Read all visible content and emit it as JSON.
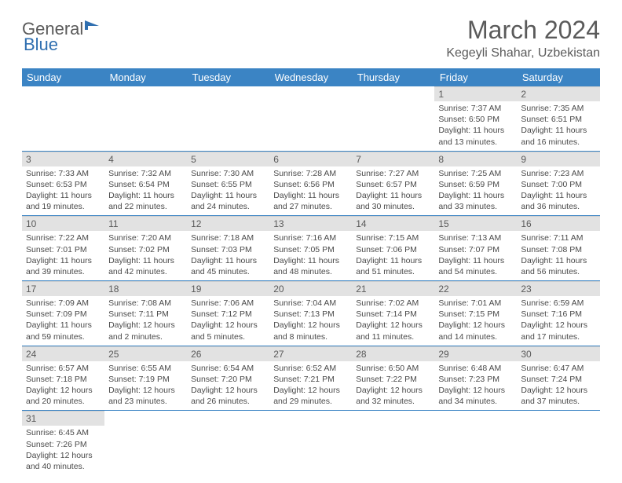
{
  "logo": {
    "text_a": "General",
    "text_b": "Blue"
  },
  "title": "March 2024",
  "location": "Kegeyli Shahar, Uzbekistan",
  "colors": {
    "header_bg": "#3b84c4",
    "header_text": "#ffffff",
    "daynum_bg": "#e2e2e2",
    "text_gray": "#5a5a5a",
    "cell_border": "#3b84c4"
  },
  "weekdays": [
    "Sunday",
    "Monday",
    "Tuesday",
    "Wednesday",
    "Thursday",
    "Friday",
    "Saturday"
  ],
  "weeks": [
    [
      null,
      null,
      null,
      null,
      null,
      {
        "n": "1",
        "sr": "Sunrise: 7:37 AM",
        "ss": "Sunset: 6:50 PM",
        "dl": "Daylight: 11 hours and 13 minutes."
      },
      {
        "n": "2",
        "sr": "Sunrise: 7:35 AM",
        "ss": "Sunset: 6:51 PM",
        "dl": "Daylight: 11 hours and 16 minutes."
      }
    ],
    [
      {
        "n": "3",
        "sr": "Sunrise: 7:33 AM",
        "ss": "Sunset: 6:53 PM",
        "dl": "Daylight: 11 hours and 19 minutes."
      },
      {
        "n": "4",
        "sr": "Sunrise: 7:32 AM",
        "ss": "Sunset: 6:54 PM",
        "dl": "Daylight: 11 hours and 22 minutes."
      },
      {
        "n": "5",
        "sr": "Sunrise: 7:30 AM",
        "ss": "Sunset: 6:55 PM",
        "dl": "Daylight: 11 hours and 24 minutes."
      },
      {
        "n": "6",
        "sr": "Sunrise: 7:28 AM",
        "ss": "Sunset: 6:56 PM",
        "dl": "Daylight: 11 hours and 27 minutes."
      },
      {
        "n": "7",
        "sr": "Sunrise: 7:27 AM",
        "ss": "Sunset: 6:57 PM",
        "dl": "Daylight: 11 hours and 30 minutes."
      },
      {
        "n": "8",
        "sr": "Sunrise: 7:25 AM",
        "ss": "Sunset: 6:59 PM",
        "dl": "Daylight: 11 hours and 33 minutes."
      },
      {
        "n": "9",
        "sr": "Sunrise: 7:23 AM",
        "ss": "Sunset: 7:00 PM",
        "dl": "Daylight: 11 hours and 36 minutes."
      }
    ],
    [
      {
        "n": "10",
        "sr": "Sunrise: 7:22 AM",
        "ss": "Sunset: 7:01 PM",
        "dl": "Daylight: 11 hours and 39 minutes."
      },
      {
        "n": "11",
        "sr": "Sunrise: 7:20 AM",
        "ss": "Sunset: 7:02 PM",
        "dl": "Daylight: 11 hours and 42 minutes."
      },
      {
        "n": "12",
        "sr": "Sunrise: 7:18 AM",
        "ss": "Sunset: 7:03 PM",
        "dl": "Daylight: 11 hours and 45 minutes."
      },
      {
        "n": "13",
        "sr": "Sunrise: 7:16 AM",
        "ss": "Sunset: 7:05 PM",
        "dl": "Daylight: 11 hours and 48 minutes."
      },
      {
        "n": "14",
        "sr": "Sunrise: 7:15 AM",
        "ss": "Sunset: 7:06 PM",
        "dl": "Daylight: 11 hours and 51 minutes."
      },
      {
        "n": "15",
        "sr": "Sunrise: 7:13 AM",
        "ss": "Sunset: 7:07 PM",
        "dl": "Daylight: 11 hours and 54 minutes."
      },
      {
        "n": "16",
        "sr": "Sunrise: 7:11 AM",
        "ss": "Sunset: 7:08 PM",
        "dl": "Daylight: 11 hours and 56 minutes."
      }
    ],
    [
      {
        "n": "17",
        "sr": "Sunrise: 7:09 AM",
        "ss": "Sunset: 7:09 PM",
        "dl": "Daylight: 11 hours and 59 minutes."
      },
      {
        "n": "18",
        "sr": "Sunrise: 7:08 AM",
        "ss": "Sunset: 7:11 PM",
        "dl": "Daylight: 12 hours and 2 minutes."
      },
      {
        "n": "19",
        "sr": "Sunrise: 7:06 AM",
        "ss": "Sunset: 7:12 PM",
        "dl": "Daylight: 12 hours and 5 minutes."
      },
      {
        "n": "20",
        "sr": "Sunrise: 7:04 AM",
        "ss": "Sunset: 7:13 PM",
        "dl": "Daylight: 12 hours and 8 minutes."
      },
      {
        "n": "21",
        "sr": "Sunrise: 7:02 AM",
        "ss": "Sunset: 7:14 PM",
        "dl": "Daylight: 12 hours and 11 minutes."
      },
      {
        "n": "22",
        "sr": "Sunrise: 7:01 AM",
        "ss": "Sunset: 7:15 PM",
        "dl": "Daylight: 12 hours and 14 minutes."
      },
      {
        "n": "23",
        "sr": "Sunrise: 6:59 AM",
        "ss": "Sunset: 7:16 PM",
        "dl": "Daylight: 12 hours and 17 minutes."
      }
    ],
    [
      {
        "n": "24",
        "sr": "Sunrise: 6:57 AM",
        "ss": "Sunset: 7:18 PM",
        "dl": "Daylight: 12 hours and 20 minutes."
      },
      {
        "n": "25",
        "sr": "Sunrise: 6:55 AM",
        "ss": "Sunset: 7:19 PM",
        "dl": "Daylight: 12 hours and 23 minutes."
      },
      {
        "n": "26",
        "sr": "Sunrise: 6:54 AM",
        "ss": "Sunset: 7:20 PM",
        "dl": "Daylight: 12 hours and 26 minutes."
      },
      {
        "n": "27",
        "sr": "Sunrise: 6:52 AM",
        "ss": "Sunset: 7:21 PM",
        "dl": "Daylight: 12 hours and 29 minutes."
      },
      {
        "n": "28",
        "sr": "Sunrise: 6:50 AM",
        "ss": "Sunset: 7:22 PM",
        "dl": "Daylight: 12 hours and 32 minutes."
      },
      {
        "n": "29",
        "sr": "Sunrise: 6:48 AM",
        "ss": "Sunset: 7:23 PM",
        "dl": "Daylight: 12 hours and 34 minutes."
      },
      {
        "n": "30",
        "sr": "Sunrise: 6:47 AM",
        "ss": "Sunset: 7:24 PM",
        "dl": "Daylight: 12 hours and 37 minutes."
      }
    ],
    [
      {
        "n": "31",
        "sr": "Sunrise: 6:45 AM",
        "ss": "Sunset: 7:26 PM",
        "dl": "Daylight: 12 hours and 40 minutes."
      },
      null,
      null,
      null,
      null,
      null,
      null
    ]
  ]
}
